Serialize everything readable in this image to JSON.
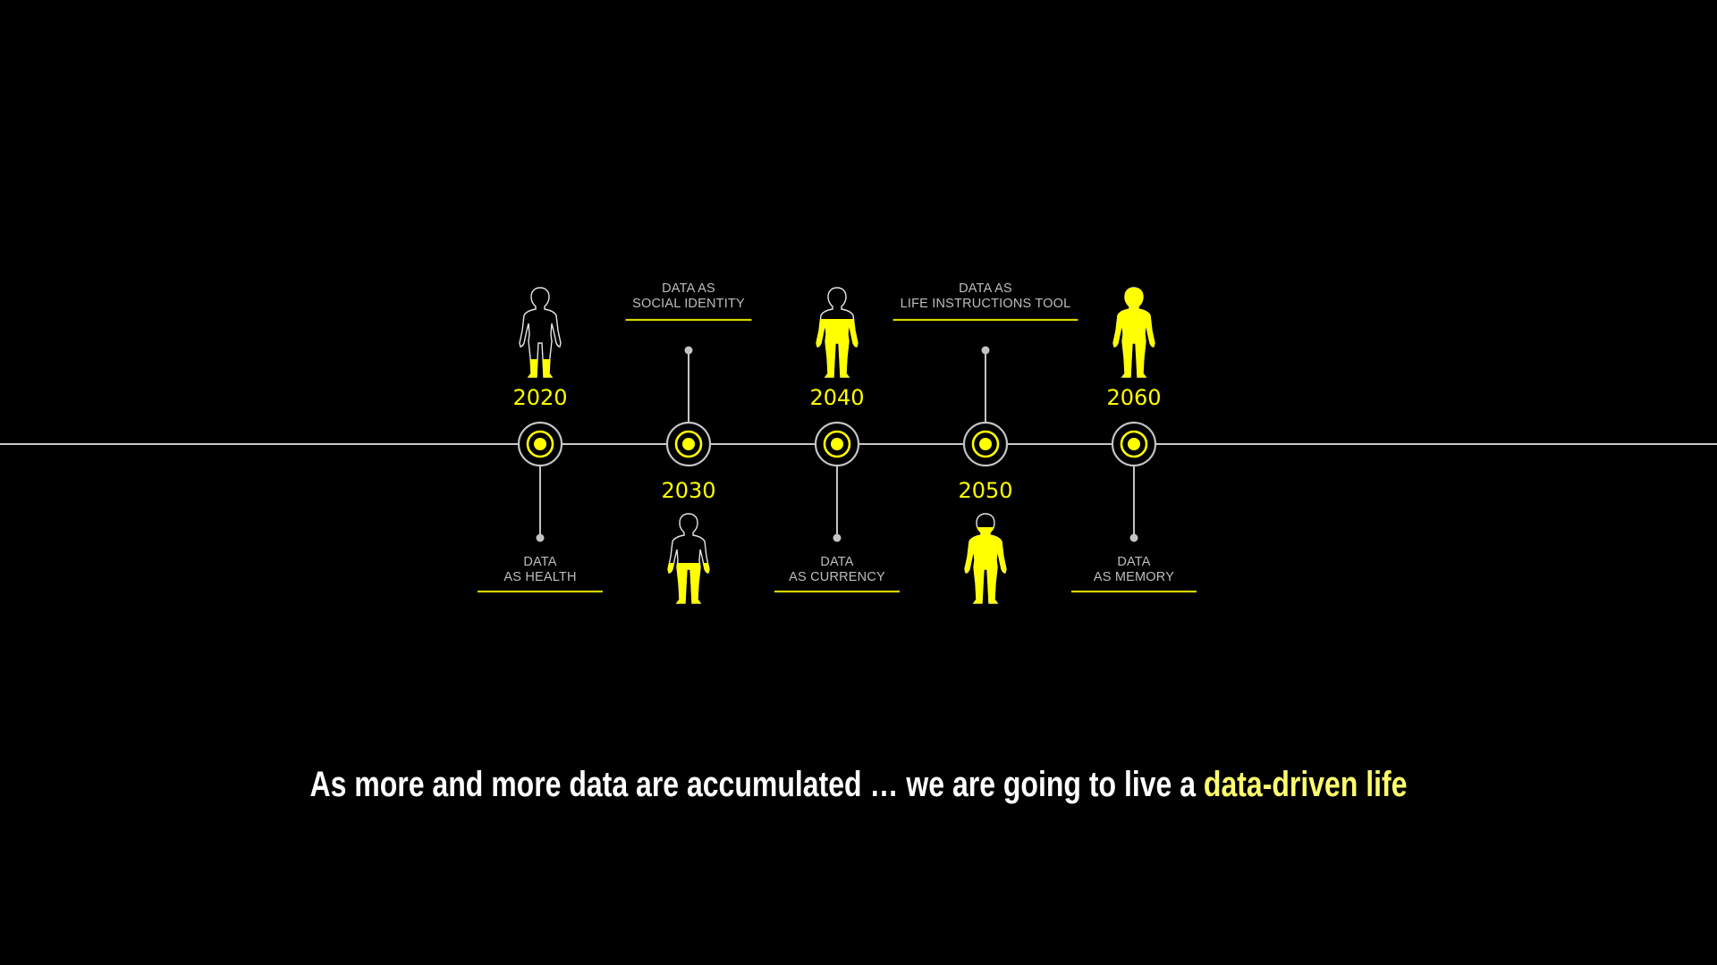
{
  "colors": {
    "background": "#000000",
    "line": "#c8c8c8",
    "node_ring": "#c4c4c4",
    "accent": "#ffff00",
    "label_text": "#bdbdbd",
    "underline": "#d4d400",
    "caption": "#ffffff",
    "caption_highlight": "#ffff6e"
  },
  "timeline": {
    "milestones": [
      {
        "year": "2020",
        "label_lines": [
          "DATA",
          "AS HEALTH"
        ],
        "fill_level": 0.2,
        "figure_side": "top",
        "label_side": "bottom",
        "figure_icon": "human-figure-icon"
      },
      {
        "year": "2030",
        "label_lines": [
          "DATA AS",
          "SOCIAL IDENTITY"
        ],
        "fill_level": 0.45,
        "figure_side": "bottom",
        "label_side": "top",
        "figure_icon": "human-figure-icon"
      },
      {
        "year": "2040",
        "label_lines": [
          "DATA",
          "AS CURRENCY"
        ],
        "fill_level": 0.65,
        "figure_side": "top",
        "label_side": "bottom",
        "figure_icon": "human-figure-icon"
      },
      {
        "year": "2050",
        "label_lines": [
          "DATA AS",
          "LIFE INSTRUCTIONS TOOL"
        ],
        "fill_level": 0.85,
        "figure_side": "bottom",
        "label_side": "top",
        "figure_icon": "human-figure-icon"
      },
      {
        "year": "2060",
        "label_lines": [
          "DATA",
          "AS MEMORY"
        ],
        "fill_level": 1.0,
        "figure_side": "top",
        "label_side": "bottom",
        "figure_icon": "human-figure-icon"
      }
    ]
  },
  "caption": {
    "text": "As more and more data are accumulated … we are going to live a ",
    "highlight": "data-driven life"
  }
}
